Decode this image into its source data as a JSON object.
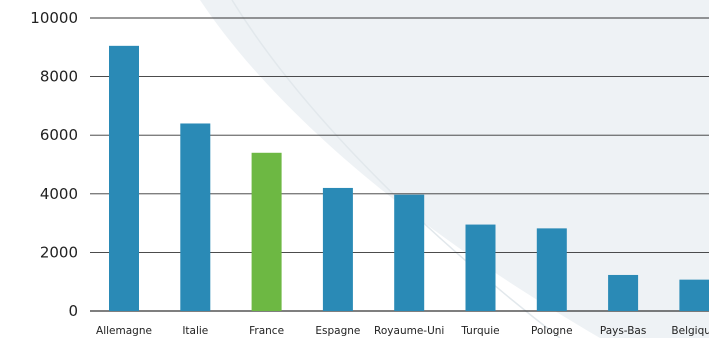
{
  "chart_data": {
    "type": "bar",
    "title": "",
    "xlabel": "",
    "ylabel": "",
    "ylim": [
      0,
      10000
    ],
    "yticks": [
      0,
      2000,
      4000,
      6000,
      8000,
      10000
    ],
    "grid": true,
    "categories": [
      "Allemagne",
      "Italie",
      "France",
      "Espagne",
      "Royaume-Uni",
      "Turquie",
      "Pologne",
      "Pays-Bas",
      "Belgique"
    ],
    "values": [
      9050,
      6400,
      5400,
      4200,
      3970,
      2950,
      2820,
      1230,
      1070
    ],
    "colors": {
      "default": "#2A8AB6",
      "highlight": "#6DB843",
      "grid": "#333333",
      "background_shape": "#EEF2F5"
    },
    "highlight_category": "France"
  }
}
